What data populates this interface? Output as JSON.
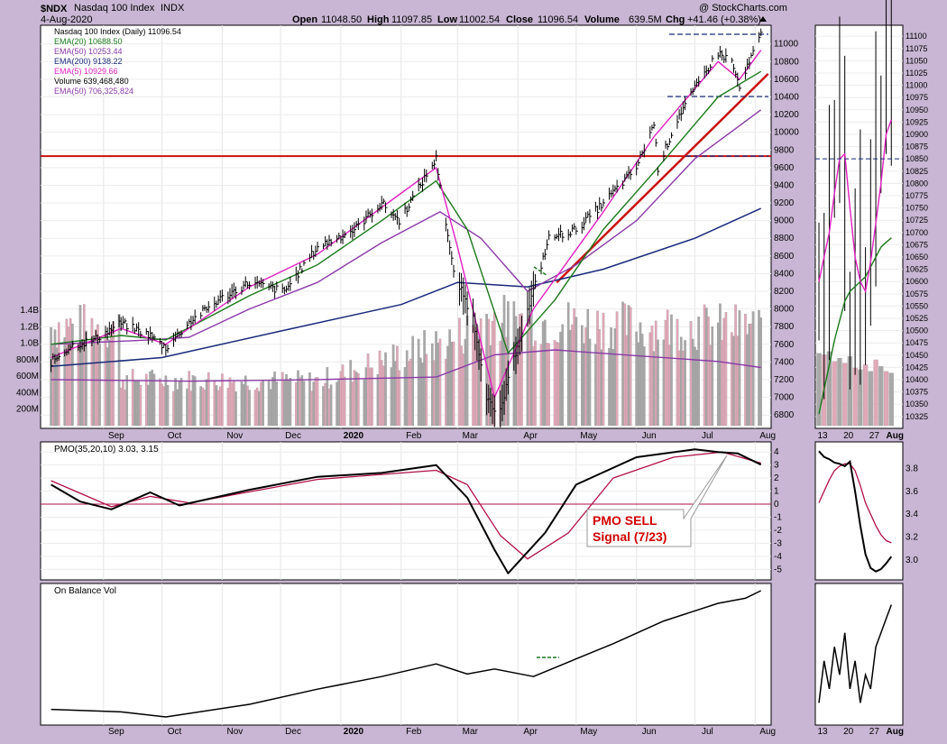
{
  "header": {
    "symbol": "$NDX",
    "name": "Nasdaq 100 Index",
    "exchange": "INDX",
    "date": "4-Aug-2020",
    "ohlc": {
      "open_label": "Open",
      "open": "11048.50",
      "high_label": "High",
      "high": "11097.85",
      "low_label": "Low",
      "low": "11002.54",
      "close_label": "Close",
      "close": "11096.54",
      "volume_label": "Volume",
      "volume": "639.5M",
      "chg_label": "Chg",
      "chg": "+41.46 (+0.38%)"
    },
    "credit": "@ StockCharts.com"
  },
  "legend": [
    {
      "text": "Nasdaq 100 Index (Daily) 11096.54",
      "color": "#000000"
    },
    {
      "text": "EMA(20) 10688.50",
      "color": "#1a7a1a"
    },
    {
      "text": "EMA(50) 10253.44",
      "color": "#8a3aa8"
    },
    {
      "text": "EMA(200) 9138.22",
      "color": "#1a2a7a"
    },
    {
      "text": "EMA(5) 10929.66",
      "color": "#e020c0"
    },
    {
      "text": "Volume 639,468,480",
      "color": "#000000"
    },
    {
      "text": "EMA(50) 706,325,824",
      "color": "#8a3aa8"
    }
  ],
  "annotation": {
    "line1": "PMO SELL",
    "line2": "Signal (7/23)"
  },
  "colors": {
    "price": "#000000",
    "ema20": "#1a7a1a",
    "ema50": "#8a3aa8",
    "ema200": "#1a2a7a",
    "ema5": "#e020c0",
    "resistance": "#cc1111",
    "vol_up": "#a8a8a8",
    "vol_down": "#e0a8b8",
    "pmo": "#000000",
    "pmo_signal": "#b0104a",
    "obv": "#000000"
  },
  "chart_data": [
    {
      "id": "price",
      "type": "line",
      "title": "Nasdaq 100 Index (Daily)",
      "x_tick_labels": [
        "Sep",
        "Oct",
        "Nov",
        "Dec",
        "2020",
        "Feb",
        "Mar",
        "Apr",
        "May",
        "Jun",
        "Jul",
        "Aug"
      ],
      "ylim": [
        6700,
        11150
      ],
      "y_ticks": [
        6800,
        7000,
        7200,
        7400,
        7600,
        7800,
        8000,
        8200,
        8400,
        8600,
        8800,
        9000,
        9200,
        9400,
        9600,
        9800,
        10000,
        10200,
        10400,
        10600,
        10800,
        11000
      ],
      "resistance_level": 9730,
      "close_points": [
        {
          "x": "2019-08-05",
          "y": 7400
        },
        {
          "x": "2019-08-15",
          "y": 7580
        },
        {
          "x": "2019-08-27",
          "y": 7650
        },
        {
          "x": "2019-09-10",
          "y": 7840
        },
        {
          "x": "2019-09-25",
          "y": 7700
        },
        {
          "x": "2019-10-03",
          "y": 7560
        },
        {
          "x": "2019-10-15",
          "y": 7850
        },
        {
          "x": "2019-10-30",
          "y": 8100
        },
        {
          "x": "2019-11-15",
          "y": 8300
        },
        {
          "x": "2019-12-03",
          "y": 8200
        },
        {
          "x": "2019-12-20",
          "y": 8700
        },
        {
          "x": "2020-01-08",
          "y": 8900
        },
        {
          "x": "2020-01-22",
          "y": 9200
        },
        {
          "x": "2020-01-31",
          "y": 9000
        },
        {
          "x": "2020-02-19",
          "y": 9700
        },
        {
          "x": "2020-02-28",
          "y": 8400
        },
        {
          "x": "2020-03-09",
          "y": 7900
        },
        {
          "x": "2020-03-16",
          "y": 7020
        },
        {
          "x": "2020-03-20",
          "y": 6800
        },
        {
          "x": "2020-03-23",
          "y": 6850
        },
        {
          "x": "2020-04-01",
          "y": 7600
        },
        {
          "x": "2020-04-09",
          "y": 8200
        },
        {
          "x": "2020-04-17",
          "y": 8800
        },
        {
          "x": "2020-05-01",
          "y": 8900
        },
        {
          "x": "2020-05-15",
          "y": 9200
        },
        {
          "x": "2020-06-01",
          "y": 9600
        },
        {
          "x": "2020-06-10",
          "y": 10100
        },
        {
          "x": "2020-06-12",
          "y": 9600
        },
        {
          "x": "2020-06-23",
          "y": 10200
        },
        {
          "x": "2020-07-07",
          "y": 10700
        },
        {
          "x": "2020-07-13",
          "y": 10900
        },
        {
          "x": "2020-07-20",
          "y": 10800
        },
        {
          "x": "2020-07-24",
          "y": 10500
        },
        {
          "x": "2020-07-31",
          "y": 10900
        },
        {
          "x": "2020-08-04",
          "y": 11096.54
        }
      ],
      "ema5": [
        {
          "x": "2019-08-05",
          "y": 7450
        },
        {
          "x": "2019-09-10",
          "y": 7780
        },
        {
          "x": "2019-10-03",
          "y": 7600
        },
        {
          "x": "2019-11-15",
          "y": 8250
        },
        {
          "x": "2019-12-20",
          "y": 8620
        },
        {
          "x": "2020-01-22",
          "y": 9150
        },
        {
          "x": "2020-02-19",
          "y": 9600
        },
        {
          "x": "2020-03-01",
          "y": 8700
        },
        {
          "x": "2020-03-20",
          "y": 7000
        },
        {
          "x": "2020-04-09",
          "y": 8000
        },
        {
          "x": "2020-05-15",
          "y": 9100
        },
        {
          "x": "2020-06-10",
          "y": 9950
        },
        {
          "x": "2020-07-13",
          "y": 10800
        },
        {
          "x": "2020-07-24",
          "y": 10600
        },
        {
          "x": "2020-08-04",
          "y": 10929.66
        }
      ],
      "ema20": [
        {
          "x": "2019-08-05",
          "y": 7600
        },
        {
          "x": "2019-09-10",
          "y": 7700
        },
        {
          "x": "2019-10-03",
          "y": 7650
        },
        {
          "x": "2019-11-15",
          "y": 8150
        },
        {
          "x": "2019-12-20",
          "y": 8500
        },
        {
          "x": "2020-01-22",
          "y": 9000
        },
        {
          "x": "2020-02-19",
          "y": 9450
        },
        {
          "x": "2020-03-06",
          "y": 8900
        },
        {
          "x": "2020-03-27",
          "y": 7500
        },
        {
          "x": "2020-04-20",
          "y": 8100
        },
        {
          "x": "2020-05-15",
          "y": 8900
        },
        {
          "x": "2020-06-10",
          "y": 9550
        },
        {
          "x": "2020-07-13",
          "y": 10400
        },
        {
          "x": "2020-08-04",
          "y": 10688.5
        }
      ],
      "ema50": [
        {
          "x": "2019-08-05",
          "y": 7600
        },
        {
          "x": "2019-09-25",
          "y": 7650
        },
        {
          "x": "2019-10-15",
          "y": 7680
        },
        {
          "x": "2019-11-15",
          "y": 8000
        },
        {
          "x": "2019-12-20",
          "y": 8300
        },
        {
          "x": "2020-01-22",
          "y": 8750
        },
        {
          "x": "2020-02-21",
          "y": 9100
        },
        {
          "x": "2020-03-13",
          "y": 8800
        },
        {
          "x": "2020-04-06",
          "y": 8200
        },
        {
          "x": "2020-05-01",
          "y": 8500
        },
        {
          "x": "2020-06-01",
          "y": 9000
        },
        {
          "x": "2020-07-01",
          "y": 9700
        },
        {
          "x": "2020-08-04",
          "y": 10253.44
        }
      ],
      "ema200": [
        {
          "x": "2019-08-05",
          "y": 7350
        },
        {
          "x": "2019-10-01",
          "y": 7450
        },
        {
          "x": "2019-12-01",
          "y": 7750
        },
        {
          "x": "2020-02-01",
          "y": 8050
        },
        {
          "x": "2020-03-01",
          "y": 8300
        },
        {
          "x": "2020-04-06",
          "y": 8250
        },
        {
          "x": "2020-05-15",
          "y": 8450
        },
        {
          "x": "2020-07-01",
          "y": 8800
        },
        {
          "x": "2020-08-04",
          "y": 9138.22
        }
      ],
      "rising_trendline": [
        {
          "x": "2020-04-21",
          "y": 8300
        },
        {
          "x": "2020-08-04",
          "y": 10600
        }
      ]
    },
    {
      "id": "volume",
      "type": "bar",
      "title": "Volume",
      "ylim": [
        0,
        1500
      ],
      "y_tick_labels": [
        "200M",
        "400M",
        "600M",
        "800M",
        "1.0B",
        "1.2B",
        "1.4B"
      ],
      "ema50": [
        {
          "x": "2019-08-05",
          "y": 560
        },
        {
          "x": "2019-10-15",
          "y": 540
        },
        {
          "x": "2019-12-20",
          "y": 560
        },
        {
          "x": "2020-02-19",
          "y": 590
        },
        {
          "x": "2020-03-20",
          "y": 860
        },
        {
          "x": "2020-04-20",
          "y": 920
        },
        {
          "x": "2020-06-01",
          "y": 850
        },
        {
          "x": "2020-07-13",
          "y": 780
        },
        {
          "x": "2020-08-04",
          "y": 706
        }
      ],
      "levels": [
        {
          "x": "2019-09-10",
          "y": 560
        },
        {
          "x": "2019-12-20",
          "y": 540
        },
        {
          "x": "2020-02-28",
          "y": 1050
        },
        {
          "x": "2020-03-16",
          "y": 1300
        },
        {
          "x": "2020-06-10",
          "y": 1200
        }
      ]
    },
    {
      "id": "pmo",
      "type": "line",
      "title": "PMO(35,20,10) 3.03, 3.15",
      "ylim": [
        -5.6,
        4.5
      ],
      "y_ticks": [
        -5,
        -4,
        -3,
        -2,
        -1,
        0,
        1,
        2,
        3,
        4
      ],
      "pmo": [
        {
          "x": "2019-08-05",
          "y": 1.5
        },
        {
          "x": "2019-08-20",
          "y": 0.2
        },
        {
          "x": "2019-09-05",
          "y": -0.4
        },
        {
          "x": "2019-09-25",
          "y": 0.9
        },
        {
          "x": "2019-10-10",
          "y": -0.1
        },
        {
          "x": "2019-11-15",
          "y": 1.1
        },
        {
          "x": "2019-12-20",
          "y": 2.1
        },
        {
          "x": "2020-01-22",
          "y": 2.4
        },
        {
          "x": "2020-02-19",
          "y": 3.0
        },
        {
          "x": "2020-03-06",
          "y": 0.5
        },
        {
          "x": "2020-03-20",
          "y": -3.5
        },
        {
          "x": "2020-03-27",
          "y": -5.3
        },
        {
          "x": "2020-04-15",
          "y": -2.2
        },
        {
          "x": "2020-05-01",
          "y": 1.5
        },
        {
          "x": "2020-06-01",
          "y": 3.6
        },
        {
          "x": "2020-07-01",
          "y": 4.2
        },
        {
          "x": "2020-07-13",
          "y": 4.0
        },
        {
          "x": "2020-07-23",
          "y": 3.9
        },
        {
          "x": "2020-08-04",
          "y": 3.03
        }
      ],
      "signal": [
        {
          "x": "2019-08-05",
          "y": 1.8
        },
        {
          "x": "2019-09-05",
          "y": -0.2
        },
        {
          "x": "2019-09-25",
          "y": 0.6
        },
        {
          "x": "2019-10-15",
          "y": 0.1
        },
        {
          "x": "2019-12-20",
          "y": 1.9
        },
        {
          "x": "2020-02-19",
          "y": 2.6
        },
        {
          "x": "2020-03-06",
          "y": 1.5
        },
        {
          "x": "2020-03-23",
          "y": -2.4
        },
        {
          "x": "2020-04-06",
          "y": -4.2
        },
        {
          "x": "2020-04-27",
          "y": -2.2
        },
        {
          "x": "2020-05-20",
          "y": 2.0
        },
        {
          "x": "2020-06-20",
          "y": 3.6
        },
        {
          "x": "2020-07-15",
          "y": 4.0
        },
        {
          "x": "2020-08-04",
          "y": 3.15
        }
      ]
    },
    {
      "id": "obv",
      "type": "line",
      "title": "On Balance Vol",
      "points": [
        {
          "x": "2019-08-05",
          "y": 0
        },
        {
          "x": "2019-09-10",
          "y": -1.0
        },
        {
          "x": "2019-10-03",
          "y": -3
        },
        {
          "x": "2019-11-15",
          "y": 2
        },
        {
          "x": "2019-12-20",
          "y": 8
        },
        {
          "x": "2020-01-22",
          "y": 13
        },
        {
          "x": "2020-02-19",
          "y": 18
        },
        {
          "x": "2020-03-06",
          "y": 14
        },
        {
          "x": "2020-03-20",
          "y": 16
        },
        {
          "x": "2020-04-09",
          "y": 13
        },
        {
          "x": "2020-05-01",
          "y": 20
        },
        {
          "x": "2020-05-20",
          "y": 26
        },
        {
          "x": "2020-06-15",
          "y": 35
        },
        {
          "x": "2020-07-13",
          "y": 42
        },
        {
          "x": "2020-07-27",
          "y": 44
        },
        {
          "x": "2020-08-04",
          "y": 47
        }
      ]
    },
    {
      "id": "zoom-price",
      "type": "line",
      "x_tick_labels": [
        "13",
        "20",
        "27",
        "Aug"
      ],
      "ylim": [
        10310,
        11115
      ],
      "y_ticks": [
        10325,
        10350,
        10375,
        10400,
        10425,
        10450,
        10475,
        10500,
        10525,
        10550,
        10575,
        10600,
        10625,
        10650,
        10675,
        10700,
        10725,
        10750,
        10775,
        10800,
        10825,
        10850,
        10875,
        10900,
        10925,
        10950,
        10975,
        11000,
        11025,
        11050,
        11075,
        11100
      ]
    },
    {
      "id": "zoom-pmo",
      "type": "line",
      "ylim": [
        2.85,
        4.0
      ],
      "y_ticks": [
        3.0,
        3.2,
        3.4,
        3.6,
        3.8
      ]
    }
  ]
}
